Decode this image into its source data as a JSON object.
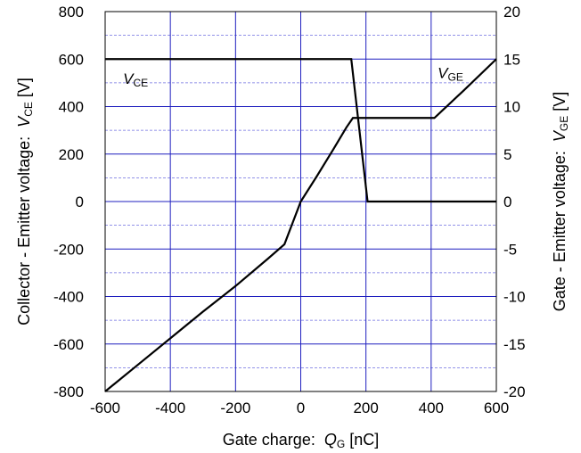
{
  "chart_data": {
    "type": "line",
    "title": "",
    "xlabel": {
      "prefix": "Gate charge:  ",
      "symbol": "Q",
      "subscript": "G",
      "suffix": " [nC]"
    },
    "ylabel_left": {
      "prefix": "Collector - Emitter voltage:  ",
      "symbol": "V",
      "subscript": "CE",
      "suffix": " [V]"
    },
    "ylabel_right": {
      "prefix": "Gate - Emitter voltage:  ",
      "symbol": "V",
      "subscript": "GE",
      "suffix": " [V]"
    },
    "xlim": [
      -600,
      600
    ],
    "ylim_left": [
      -800,
      800
    ],
    "ylim_right": [
      -20,
      20
    ],
    "x_ticks": [
      -600,
      -400,
      -200,
      0,
      200,
      400,
      600
    ],
    "y_left_ticks": [
      -800,
      -600,
      -400,
      -200,
      0,
      200,
      400,
      600,
      800
    ],
    "y_right_ticks": [
      -20,
      -15,
      -10,
      -5,
      0,
      5,
      10,
      15,
      20
    ],
    "grid": {
      "major": true,
      "minor": true,
      "color": "#1f1fbf",
      "minor_color": "#6f6fe0"
    },
    "series": [
      {
        "name": "VCE",
        "label": {
          "symbol": "V",
          "subscript": "CE"
        },
        "axis": "left",
        "color": "#000000",
        "x": [
          -600,
          155,
          205,
          600
        ],
        "y": [
          600,
          600,
          0,
          0
        ]
      },
      {
        "name": "VGE",
        "label": {
          "symbol": "V",
          "subscript": "GE"
        },
        "axis": "right",
        "color": "#000000",
        "x": [
          -600,
          -500,
          -400,
          -300,
          -200,
          -100,
          -50,
          0,
          50,
          100,
          140,
          160,
          300,
          410,
          500,
          600
        ],
        "y": [
          -20,
          -17.2,
          -14.4,
          -11.6,
          -8.9,
          -6.0,
          -4.5,
          0,
          2.7,
          5.5,
          7.8,
          8.8,
          8.8,
          8.8,
          11.7,
          15
        ]
      }
    ],
    "annotations": [
      {
        "series": "VCE",
        "x": -545,
        "y_left": 495
      },
      {
        "series": "VGE",
        "x": 420,
        "y_left": 520
      }
    ]
  }
}
